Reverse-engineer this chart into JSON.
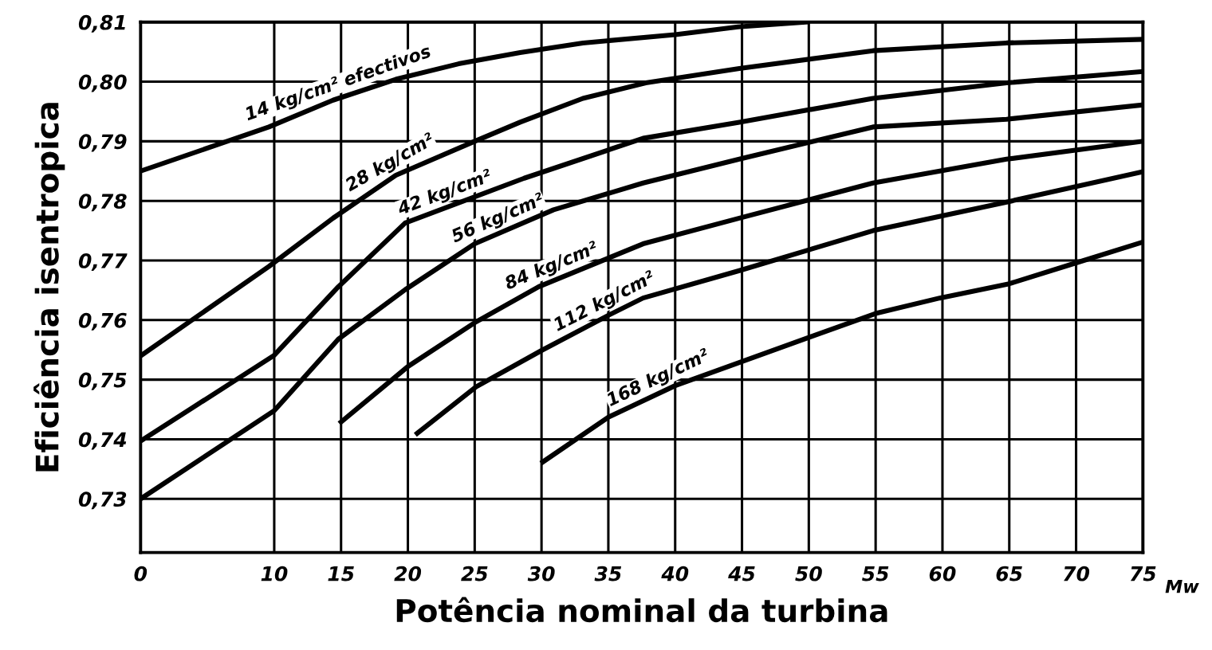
{
  "chart_data": {
    "type": "line",
    "xlabel": "Potência nominal da turbina",
    "ylabel": "Eficiência isentropica",
    "xlim": [
      0,
      75
    ],
    "xticks": [
      0,
      10,
      15,
      20,
      25,
      30,
      35,
      40,
      45,
      50,
      55,
      60,
      65,
      70,
      75
    ],
    "ylim": [
      0.721,
      0.81
    ],
    "yticks": [
      {
        "value": 0.73,
        "label": "0,73"
      },
      {
        "value": 0.74,
        "label": "0,74"
      },
      {
        "value": 0.75,
        "label": "0,75"
      },
      {
        "value": 0.76,
        "label": "0,76"
      },
      {
        "value": 0.77,
        "label": "0,77"
      },
      {
        "value": 0.78,
        "label": "0,78"
      },
      {
        "value": 0.79,
        "label": "0,79"
      },
      {
        "value": 0.8,
        "label": "0,80"
      },
      {
        "value": 0.81,
        "label": "0,81"
      }
    ],
    "grid": true,
    "marker": "none",
    "line_style": "solid",
    "annotations": [
      "Mw"
    ],
    "series": [
      {
        "name": "14 kg/cm² efectivos",
        "color": "#000000",
        "x": [
          0,
          9.6,
          14.4,
          19.1,
          23.8,
          28.4,
          33.1,
          40,
          44.7,
          49.8
        ],
        "values": [
          0.785,
          0.7924,
          0.7969,
          0.8004,
          0.803,
          0.8049,
          0.8065,
          0.8079,
          0.8092,
          0.81
        ]
      },
      {
        "name": "28 kg/cm²",
        "color": "#000000",
        "x": [
          0,
          9.6,
          14.4,
          19.1,
          25,
          28.4,
          33.1,
          37.8,
          44.8,
          54.8,
          64.8,
          75
        ],
        "values": [
          0.754,
          0.769,
          0.7771,
          0.7843,
          0.79,
          0.7932,
          0.7972,
          0.7998,
          0.8022,
          0.8052,
          0.8065,
          0.8071
        ]
      },
      {
        "name": "42 kg/cm²",
        "color": "#000000",
        "x": [
          0,
          10,
          14.8,
          19.8,
          28.7,
          37.6,
          44.8,
          54.8,
          64.8,
          75
        ],
        "values": [
          0.7397,
          0.7541,
          0.7656,
          0.7763,
          0.7838,
          0.7905,
          0.7932,
          0.7972,
          0.7998,
          0.8017
        ]
      },
      {
        "name": "56 kg/cm²",
        "color": "#000000",
        "x": [
          0,
          10,
          14.8,
          19.8,
          25,
          30.9,
          37.6,
          44.8,
          54.8,
          64.8,
          75
        ],
        "values": [
          0.73,
          0.7448,
          0.7568,
          0.7651,
          0.7728,
          0.7785,
          0.783,
          0.787,
          0.7924,
          0.7937,
          0.7961
        ]
      },
      {
        "name": "84 kg/cm²",
        "color": "#000000",
        "x": [
          15,
          20,
          25.1,
          29.8,
          37.6,
          44.8,
          54.8,
          64.8,
          75
        ],
        "values": [
          0.7429,
          0.7522,
          0.7597,
          0.7656,
          0.7728,
          0.7771,
          0.783,
          0.787,
          0.79
        ]
      },
      {
        "name": "112 kg/cm²",
        "color": "#000000",
        "x": [
          20.7,
          25.1,
          30,
          35,
          37.6,
          44.8,
          54.8,
          64.8,
          75
        ],
        "values": [
          0.741,
          0.7488,
          0.7549,
          0.7608,
          0.7637,
          0.7683,
          0.775,
          0.7798,
          0.7849
        ]
      },
      {
        "name": "168 kg/cm²",
        "color": "#000000",
        "x": [
          30.1,
          35,
          40,
          50,
          55,
          59.8,
          65,
          70,
          75
        ],
        "values": [
          0.7362,
          0.7437,
          0.749,
          0.7571,
          0.7611,
          0.7637,
          0.7661,
          0.7696,
          0.7731
        ]
      }
    ]
  }
}
